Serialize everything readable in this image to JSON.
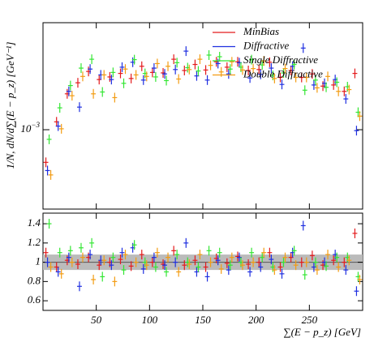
{
  "chart_data": {
    "type": "errorpoints",
    "ylabel": "1/N, dN/d∑(E − p_z) [GeV⁻¹]",
    "xlabel": "∑(E − p_z) [GeV]",
    "xlim": [
      0,
      300
    ],
    "xticks": [
      50,
      100,
      150,
      200,
      250
    ],
    "ylim": [
      0.00042,
      0.00322
    ],
    "ylog": true,
    "yticks": [
      {
        "value": 0.001,
        "label": "10",
        "exponent": "−3"
      }
    ],
    "legend": "top-right",
    "x": [
      5,
      15,
      25,
      35,
      45,
      55,
      65,
      75,
      85,
      95,
      105,
      115,
      125,
      135,
      145,
      155,
      165,
      175,
      185,
      195,
      205,
      215,
      225,
      235,
      245,
      255,
      265,
      275,
      285,
      295
    ],
    "series": [
      {
        "name": "MinBias",
        "color": "#e41a1c",
        "values": [
          0.0007,
          0.00109,
          0.00148,
          0.00167,
          0.00189,
          0.00173,
          0.00178,
          0.00185,
          0.00175,
          0.002,
          0.00187,
          0.00186,
          0.00216,
          0.00191,
          0.00204,
          0.00192,
          0.0021,
          0.00198,
          0.0021,
          0.00191,
          0.00193,
          0.00209,
          0.00177,
          0.00191,
          0.00177,
          0.00184,
          0.00161,
          0.00163,
          0.00152,
          0.00185
        ]
      },
      {
        "name": "Diffractive",
        "color": "#1f2fe0",
        "values": [
          0.00064,
          0.00104,
          0.00152,
          0.00128,
          0.00194,
          0.00182,
          0.00173,
          0.00198,
          0.00209,
          0.00172,
          0.00196,
          0.00184,
          0.00193,
          0.00236,
          0.0018,
          0.00172,
          0.00206,
          0.00184,
          0.00208,
          0.00176,
          0.00183,
          0.00196,
          0.00164,
          0.002,
          0.00244,
          0.00163,
          0.00166,
          0.00173,
          0.0014,
          0.00099
        ]
      },
      {
        "name": "Single Diffractive",
        "color": "#33e633",
        "values": [
          0.0009,
          0.00127,
          0.00162,
          0.00196,
          0.00216,
          0.00151,
          0.00187,
          0.00166,
          0.00215,
          0.00185,
          0.00178,
          0.00171,
          0.00208,
          0.00197,
          0.0019,
          0.00226,
          0.00222,
          0.00194,
          0.00198,
          0.00215,
          0.00203,
          0.00181,
          0.00186,
          0.00204,
          0.00154,
          0.00172,
          0.00159,
          0.00168,
          0.0016,
          0.00121
        ]
      },
      {
        "name": "Double Diffractive",
        "color": "#f39c12",
        "values": [
          0.00061,
          0.00101,
          0.00145,
          0.00179,
          0.00148,
          0.00182,
          0.00142,
          0.00194,
          0.00182,
          0.00179,
          0.00206,
          0.002,
          0.00174,
          0.00193,
          0.00216,
          0.00202,
          0.00188,
          0.0021,
          0.00192,
          0.00195,
          0.00212,
          0.00175,
          0.00195,
          0.00177,
          0.00177,
          0.00158,
          0.00179,
          0.00152,
          0.00155,
          0.00116
        ]
      }
    ],
    "ratio": {
      "ylim": [
        0.5,
        1.51
      ],
      "yticks": [
        0.6,
        0.8,
        1,
        1.2,
        1.4
      ],
      "band": [
        0.92,
        1.08
      ],
      "series": [
        {
          "values": [
            1.1,
            0.95,
            1.02,
            0.98,
            1.05,
            0.97,
            1.0,
            1.03,
            0.96,
            1.08,
            1.0,
            0.98,
            1.12,
            0.97,
            1.02,
            0.95,
            1.04,
            0.99,
            1.06,
            0.98,
            1.0,
            1.1,
            0.95,
            1.05,
            1.0,
            1.07,
            0.97,
            1.02,
            1.0,
            1.3
          ]
        },
        {
          "values": [
            1.0,
            0.9,
            1.05,
            0.75,
            1.08,
            1.02,
            0.97,
            1.1,
            1.15,
            0.93,
            1.05,
            0.97,
            1.0,
            1.2,
            0.9,
            0.85,
            1.02,
            0.92,
            1.05,
            0.9,
            0.95,
            1.03,
            0.88,
            1.1,
            1.38,
            0.95,
            1.0,
            1.08,
            0.92,
            0.7
          ]
        },
        {
          "values": [
            1.4,
            1.1,
            1.12,
            1.15,
            1.2,
            0.85,
            1.05,
            0.92,
            1.18,
            1.0,
            0.95,
            0.9,
            1.08,
            1.0,
            0.95,
            1.12,
            1.1,
            0.97,
            1.0,
            1.1,
            1.05,
            0.95,
            1.0,
            1.12,
            0.87,
            1.0,
            0.96,
            1.05,
            1.05,
            0.85
          ]
        },
        {
          "values": [
            0.95,
            0.88,
            1.0,
            1.05,
            0.82,
            1.02,
            0.8,
            1.08,
            1.0,
            0.97,
            1.1,
            1.05,
            0.9,
            0.98,
            1.08,
            1.0,
            0.93,
            1.05,
            0.97,
            1.0,
            1.1,
            0.92,
            1.05,
            0.97,
            1.0,
            0.92,
            1.08,
            0.95,
            1.02,
            0.82
          ]
        }
      ]
    }
  }
}
